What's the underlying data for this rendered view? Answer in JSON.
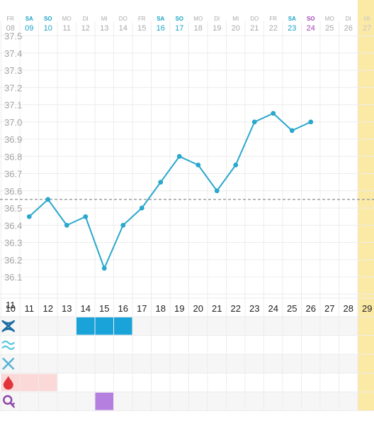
{
  "colors": {
    "weekday": "#a8a8a8",
    "saturday_sunday": "#1aa3c8",
    "highlight_sunday": "#a248b8",
    "today_column": "#fbe9a6",
    "line": "#2aa7cc",
    "coverline": "#a0a0a0",
    "grid": "#ececec",
    "row_stripe": "#f6f6f6",
    "cervix_fill": "#1aa3d9",
    "period_fill": "#fbd9d9",
    "test_fill": "#b57fe0",
    "cervix_icon": "#1b6fa3",
    "mucus_icon": "#5bc6e0",
    "cross_icon": "#58b4d6",
    "drop_icon": "#e0353a",
    "test_icon": "#8b45a8"
  },
  "header_days": [
    {
      "dow": "FR",
      "num": "08",
      "style": "weekday"
    },
    {
      "dow": "SA",
      "num": "09",
      "style": "weekend"
    },
    {
      "dow": "SO",
      "num": "10",
      "style": "weekend"
    },
    {
      "dow": "MO",
      "num": "11",
      "style": "weekday"
    },
    {
      "dow": "DI",
      "num": "12",
      "style": "weekday"
    },
    {
      "dow": "MI",
      "num": "13",
      "style": "weekday"
    },
    {
      "dow": "DO",
      "num": "14",
      "style": "weekday"
    },
    {
      "dow": "FR",
      "num": "15",
      "style": "weekday"
    },
    {
      "dow": "SA",
      "num": "16",
      "style": "weekend"
    },
    {
      "dow": "SO",
      "num": "17",
      "style": "weekend"
    },
    {
      "dow": "MO",
      "num": "18",
      "style": "weekday"
    },
    {
      "dow": "DI",
      "num": "19",
      "style": "weekday"
    },
    {
      "dow": "MI",
      "num": "20",
      "style": "weekday"
    },
    {
      "dow": "DO",
      "num": "21",
      "style": "weekday"
    },
    {
      "dow": "FR",
      "num": "22",
      "style": "weekday"
    },
    {
      "dow": "SA",
      "num": "23",
      "style": "weekend"
    },
    {
      "dow": "SO",
      "num": "24",
      "style": "highlight"
    },
    {
      "dow": "MO",
      "num": "25",
      "style": "weekday"
    },
    {
      "dow": "DI",
      "num": "26",
      "style": "weekday"
    },
    {
      "dow": "MI",
      "num": "27",
      "style": "today"
    }
  ],
  "cycle_days": [
    "10",
    "11",
    "12",
    "13",
    "14",
    "15",
    "16",
    "17",
    "18",
    "19",
    "20",
    "21",
    "22",
    "23",
    "24",
    "25",
    "26",
    "27",
    "28",
    "29"
  ],
  "cycle_day_overlay": "11",
  "today_index": 19,
  "chart_data": {
    "type": "line",
    "y_ticks": [
      "37.5",
      "37.4",
      "37.3",
      "37.2",
      "37.1",
      "37.0",
      "36.9",
      "36.8",
      "36.7",
      "36.6",
      "36.5",
      "36.4",
      "36.3",
      "36.2",
      "36.1"
    ],
    "ylim": [
      36.0,
      37.5
    ],
    "coverline": 36.55,
    "series": [
      {
        "cycle_days": [
          11,
          12,
          13,
          14,
          15,
          16,
          17,
          18,
          19,
          20,
          21,
          22,
          23,
          24,
          25,
          26
        ],
        "values": [
          36.45,
          36.55,
          36.4,
          36.45,
          36.15,
          36.4,
          36.5,
          36.65,
          36.8,
          36.75,
          36.6,
          36.75,
          37.0,
          37.05,
          36.95,
          37.0
        ]
      }
    ]
  },
  "symptom_rows": [
    {
      "icon": "cervix-icon",
      "marked_cycle_days": [
        14,
        15,
        16
      ],
      "fill": "cervix"
    },
    {
      "icon": "mucus-icon",
      "marked_cycle_days": [],
      "fill": "none"
    },
    {
      "icon": "cross-icon",
      "marked_cycle_days": [],
      "fill": "none"
    },
    {
      "icon": "blood-drop-icon",
      "marked_cycle_days": [
        10,
        11,
        12
      ],
      "fill": "period"
    },
    {
      "icon": "ovulation-test-icon",
      "marked_cycle_days": [
        15
      ],
      "fill": "test"
    }
  ]
}
